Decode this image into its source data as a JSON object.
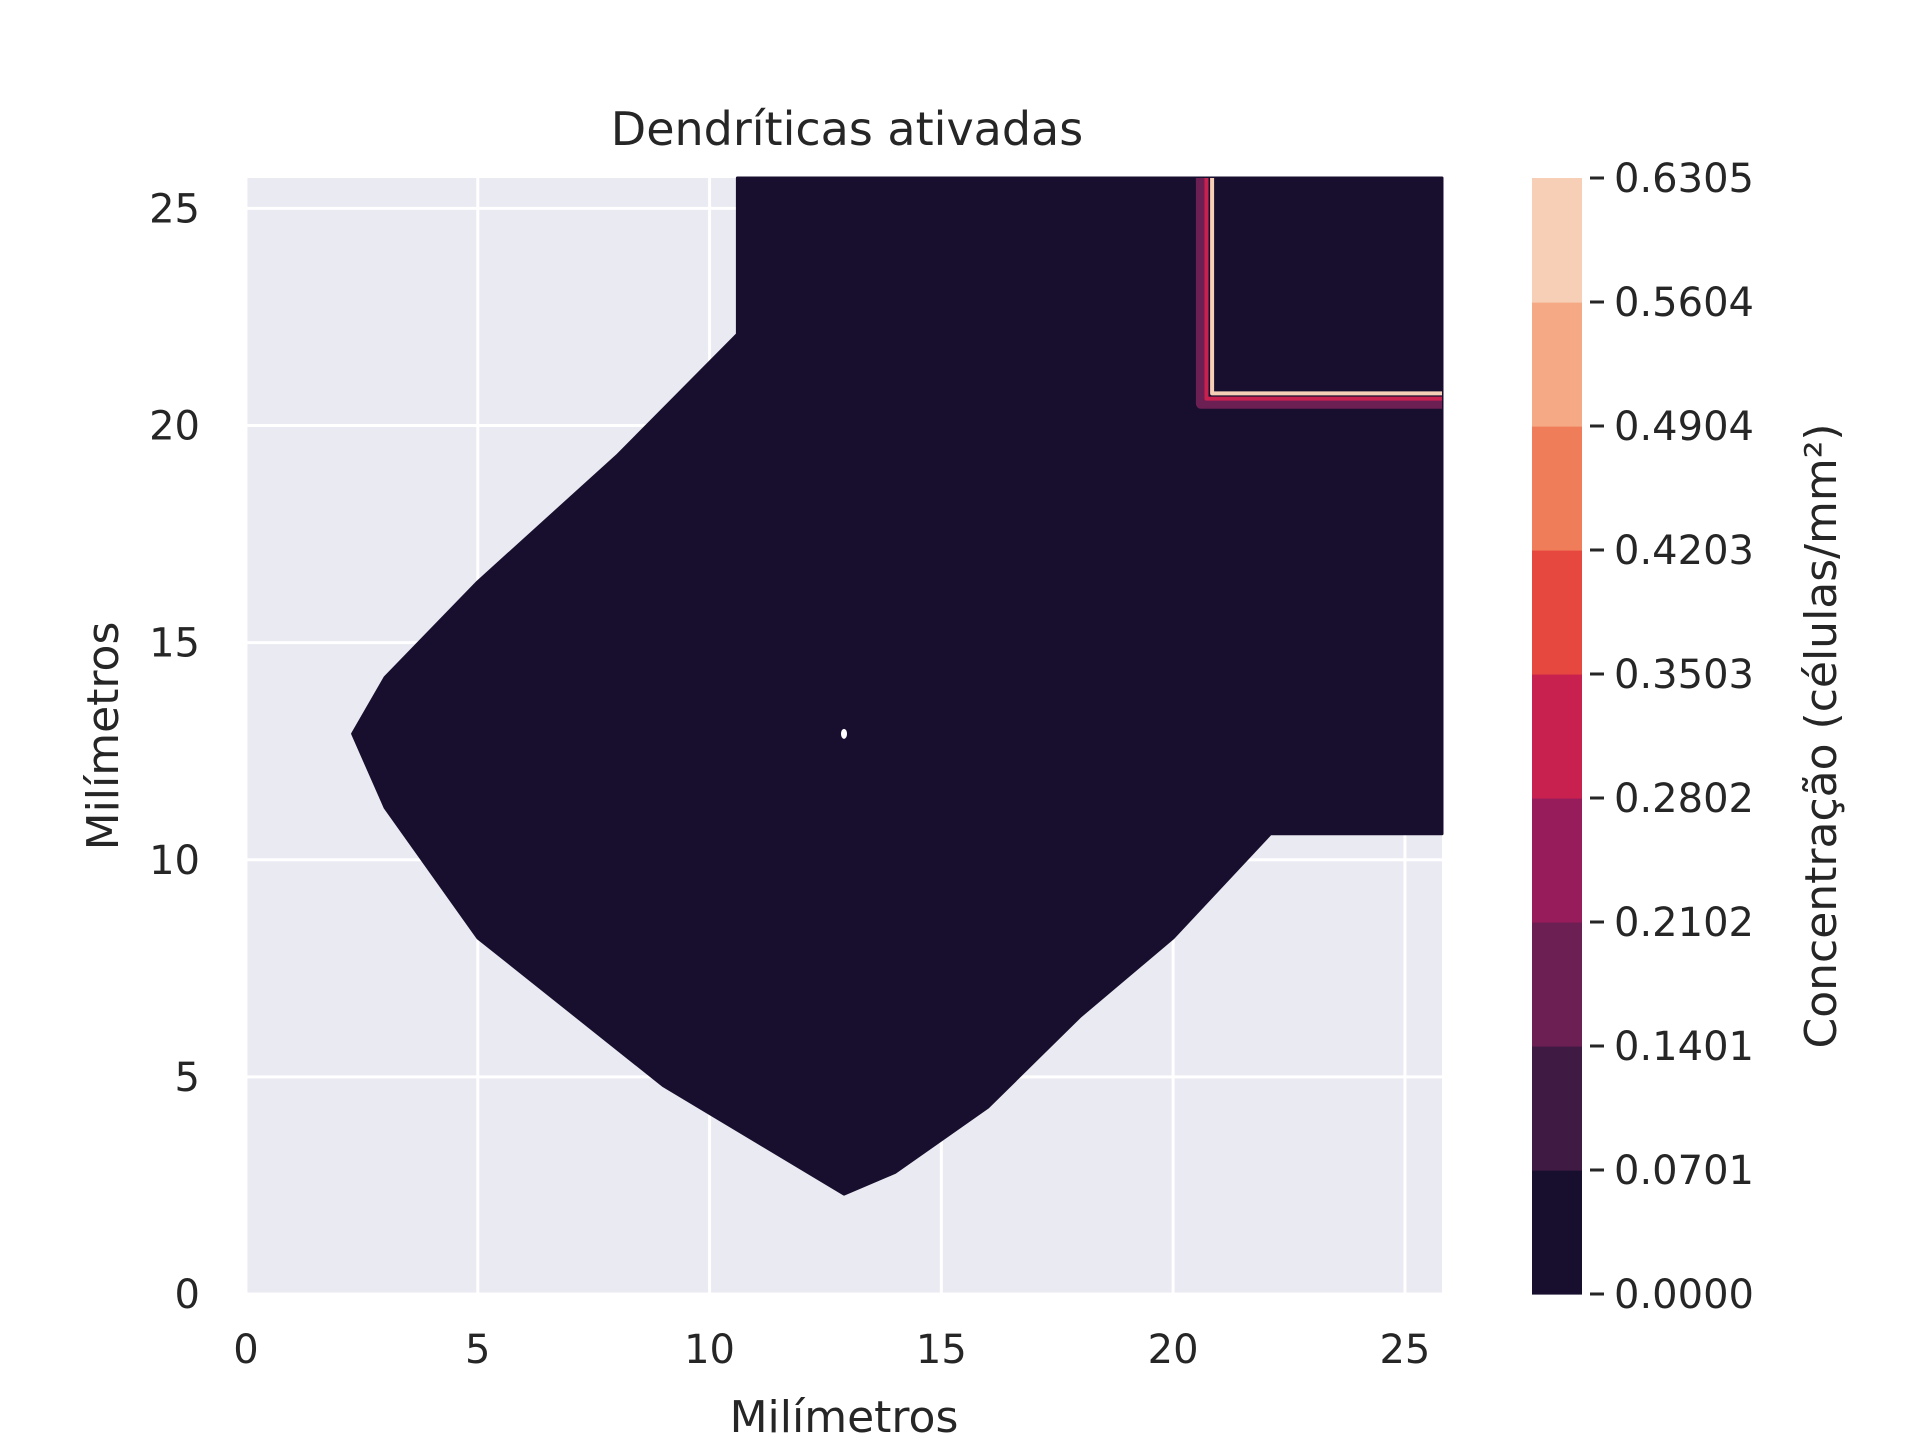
{
  "chart_data": {
    "type": "contourf",
    "title": "Dendríticas ativadas",
    "xlabel": "Milímetros",
    "ylabel": "Milímetros",
    "xlim": [
      0,
      25.8
    ],
    "ylim": [
      0,
      25.7
    ],
    "xticks": [
      "0",
      "5",
      "10",
      "15",
      "20",
      "25"
    ],
    "yticks": [
      "0",
      "5",
      "10",
      "15",
      "20",
      "25"
    ],
    "grid": true,
    "colorbar": {
      "label": "Concentração (células/mm²)",
      "levels": [
        "0.0000",
        "0.0701",
        "0.1401",
        "0.2102",
        "0.2802",
        "0.3503",
        "0.4203",
        "0.4904",
        "0.5604",
        "0.6305"
      ],
      "colors": [
        "#180f2e",
        "#3f1a43",
        "#6b1f53",
        "#961c5b",
        "#c8204f",
        "#e6473f",
        "#f07d5a",
        "#f5a985",
        "#f6cfb6"
      ]
    },
    "regions": [
      {
        "name": "dendritic-region",
        "level": "0.0000–0.0701",
        "outline": [
          [
            12.9,
            2.3
          ],
          [
            9,
            4.8
          ],
          [
            5,
            8.2
          ],
          [
            3,
            11.2
          ],
          [
            2.3,
            12.9
          ],
          [
            3,
            14.2
          ],
          [
            5,
            16.4
          ],
          [
            8,
            19.3
          ],
          [
            10.6,
            22.1
          ],
          [
            10.6,
            25.7
          ],
          [
            25.8,
            25.7
          ],
          [
            25.8,
            10.6
          ],
          [
            22.1,
            10.6
          ],
          [
            20,
            8.2
          ],
          [
            18,
            6.4
          ],
          [
            16,
            4.3
          ],
          [
            14,
            2.8
          ]
        ]
      }
    ],
    "features": [
      {
        "name": "corner-contour-lines",
        "corner": [
          20.6,
          20.5
        ],
        "colors": [
          "#6b1f53",
          "#c8204f",
          "#f6cfb6"
        ]
      },
      {
        "name": "center-dot",
        "x": 12.9,
        "y": 12.9,
        "color": "#ffffff"
      }
    ]
  }
}
